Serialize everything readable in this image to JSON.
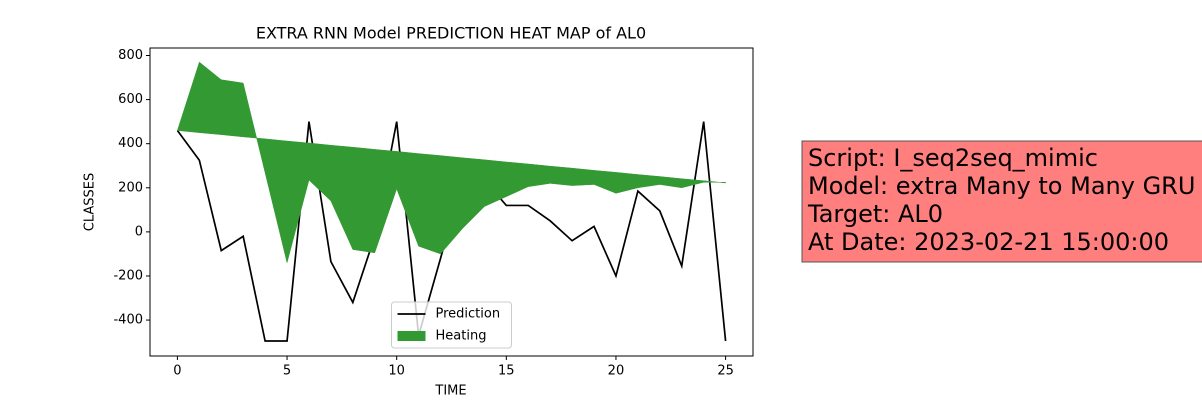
{
  "chart_data": {
    "type": "line",
    "title": "EXTRA RNN Model PREDICTION HEAT MAP of AL0",
    "xlabel": "TIME",
    "ylabel": "CLASSES",
    "x": [
      0,
      1,
      2,
      3,
      4,
      5,
      6,
      7,
      8,
      9,
      10,
      11,
      12,
      13,
      14,
      15,
      16,
      17,
      18,
      19,
      20,
      21,
      22,
      23,
      24,
      25
    ],
    "xlim": [
      -1.25,
      26.25
    ],
    "xticks": [
      0,
      5,
      10,
      15,
      20,
      25
    ],
    "ylim": [
      -563,
      834
    ],
    "yticks": [
      -400,
      -200,
      0,
      200,
      400,
      600,
      800
    ],
    "legend": "lower center",
    "series": [
      {
        "name": "Prediction",
        "kind": "line",
        "color": "#000000",
        "values": [
          460,
          325,
          -85,
          -20,
          -495,
          -495,
          500,
          -135,
          -320,
          -20,
          500,
          -470,
          -120,
          235,
          235,
          120,
          120,
          50,
          -40,
          25,
          -200,
          185,
          95,
          -155,
          500,
          -495
        ]
      },
      {
        "name": "Heating",
        "kind": "area",
        "color": "#339933",
        "values": [
          460,
          770,
          690,
          675,
          268,
          -140,
          235,
          140,
          -80,
          -95,
          195,
          -65,
          -100,
          15,
          115,
          160,
          205,
          220,
          210,
          215,
          175,
          200,
          215,
          200,
          225,
          225
        ],
        "baseline": [
          460,
          450,
          441,
          431,
          422,
          412,
          403,
          393,
          384,
          374,
          365,
          355,
          346,
          336,
          327,
          317,
          308,
          298,
          289,
          279,
          270,
          260,
          251,
          241,
          232,
          222
        ]
      }
    ],
    "annotation_lines": [
      "Script: I_seq2seq_mimic",
      "Model: extra Many to Many GRU",
      "Target: AL0",
      "At Date: 2023-02-21 15:00:00"
    ],
    "annotation_color": "#ff7f7f"
  }
}
